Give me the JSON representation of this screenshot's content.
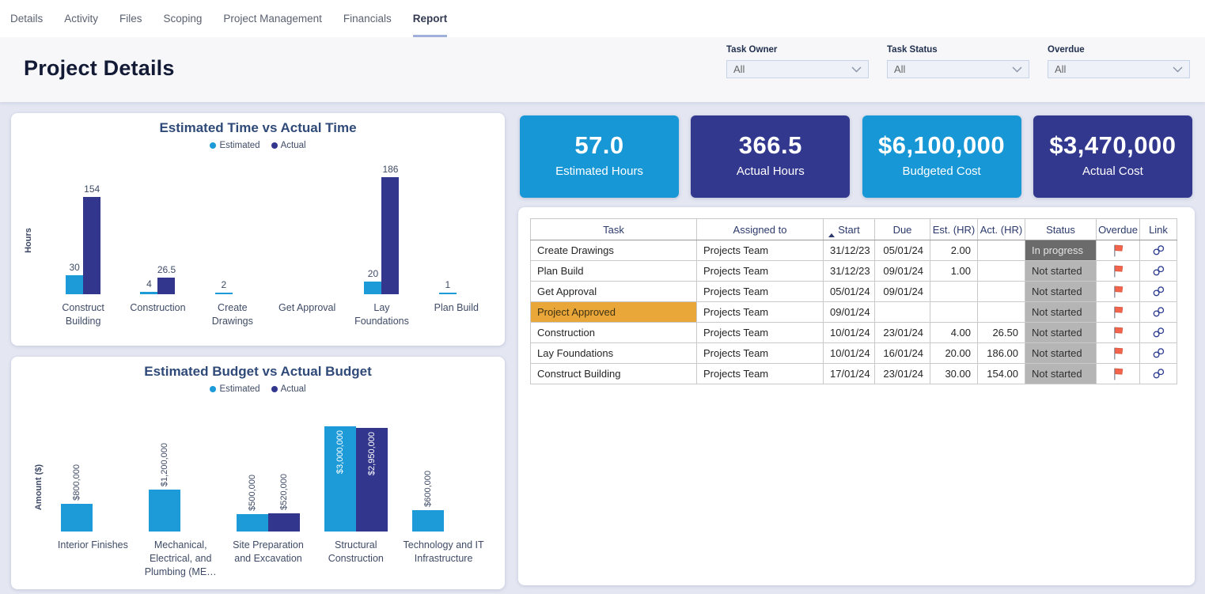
{
  "nav": {
    "tabs": [
      {
        "label": "Details",
        "active": false
      },
      {
        "label": "Activity",
        "active": false
      },
      {
        "label": "Files",
        "active": false
      },
      {
        "label": "Scoping",
        "active": false
      },
      {
        "label": "Project Management",
        "active": false
      },
      {
        "label": "Financials",
        "active": false
      },
      {
        "label": "Report",
        "active": true
      }
    ]
  },
  "header": {
    "title": "Project Details",
    "filters": [
      {
        "label": "Task Owner",
        "value": "All"
      },
      {
        "label": "Task Status",
        "value": "All"
      },
      {
        "label": "Overdue",
        "value": "All"
      }
    ]
  },
  "kpis": [
    {
      "value": "57.0",
      "label": "Estimated Hours",
      "color": "#1797D6"
    },
    {
      "value": "366.5",
      "label": "Actual Hours",
      "color": "#33388F"
    },
    {
      "value": "$6,100,000",
      "label": "Budgeted Cost",
      "color": "#1797D6"
    },
    {
      "value": "$3,470,000",
      "label": "Actual Cost",
      "color": "#33388F"
    }
  ],
  "chart_data": [
    {
      "type": "bar",
      "title": "Estimated Time vs Actual Time",
      "ylabel": "Hours",
      "legend_position": "top",
      "grid": false,
      "categories": [
        "Construct Building",
        "Construction",
        "Create Drawings",
        "Get Approval",
        "Lay Foundations",
        "Plan Build"
      ],
      "series": [
        {
          "name": "Estimated",
          "color": "#1D9BD8",
          "values": [
            30,
            4,
            2,
            null,
            20,
            1
          ],
          "labels": [
            "30",
            "4",
            "2",
            null,
            "20",
            "1"
          ]
        },
        {
          "name": "Actual",
          "color": "#32378D",
          "values": [
            154,
            26.5,
            null,
            null,
            186,
            null
          ],
          "labels": [
            "154",
            "26.5",
            null,
            null,
            "186",
            null
          ]
        }
      ],
      "ylim": [
        0,
        186
      ]
    },
    {
      "type": "bar",
      "title": "Estimated Budget vs Actual Budget",
      "ylabel": "Amount ($)",
      "legend_position": "top",
      "grid": false,
      "categories": [
        "Interior Finishes",
        "Mechanical, Electrical, and Plumbing (ME…",
        "Site Preparation and Excavation",
        "Structural Construction",
        "Technology and IT Infrastructure"
      ],
      "series": [
        {
          "name": "Estimated",
          "color": "#1D9BD8",
          "values": [
            800000,
            1200000,
            500000,
            3000000,
            600000
          ],
          "labels": [
            "$800,000",
            "$1,200,000",
            "$500,000",
            "$3,000,000",
            "$600,000"
          ]
        },
        {
          "name": "Actual",
          "color": "#32378D",
          "values": [
            null,
            null,
            520000,
            2950000,
            null
          ],
          "labels": [
            null,
            null,
            "$520,000",
            "$2,950,000",
            null
          ]
        }
      ],
      "ylim": [
        0,
        3000000
      ]
    }
  ],
  "table": {
    "columns": [
      {
        "label": "Task"
      },
      {
        "label": "Assigned to"
      },
      {
        "label": "Start",
        "sort": "asc"
      },
      {
        "label": "Due"
      },
      {
        "label": "Est. (HR)"
      },
      {
        "label": "Act. (HR)"
      },
      {
        "label": "Status"
      },
      {
        "label": "Overdue"
      },
      {
        "label": "Link"
      }
    ],
    "rows": [
      {
        "task": "Create Drawings",
        "assigned": "Projects Team",
        "start": "31/12/23",
        "due": "05/01/24",
        "est": "2.00",
        "act": "",
        "status": "In progress",
        "overdue": "flag",
        "link": "link",
        "highlight": false
      },
      {
        "task": "Plan Build",
        "assigned": "Projects Team",
        "start": "31/12/23",
        "due": "09/01/24",
        "est": "1.00",
        "act": "",
        "status": "Not started",
        "overdue": "flag",
        "link": "link",
        "highlight": false
      },
      {
        "task": "Get Approval",
        "assigned": "Projects Team",
        "start": "05/01/24",
        "due": "09/01/24",
        "est": "",
        "act": "",
        "status": "Not started",
        "overdue": "flag",
        "link": "link",
        "highlight": false
      },
      {
        "task": "Project Approved",
        "assigned": "Projects Team",
        "start": "09/01/24",
        "due": "",
        "est": "",
        "act": "",
        "status": "Not started",
        "overdue": "flag",
        "link": "link",
        "highlight": true
      },
      {
        "task": "Construction",
        "assigned": "Projects Team",
        "start": "10/01/24",
        "due": "23/01/24",
        "est": "4.00",
        "act": "26.50",
        "status": "Not started",
        "overdue": "flag",
        "link": "link",
        "highlight": false
      },
      {
        "task": "Lay Foundations",
        "assigned": "Projects Team",
        "start": "10/01/24",
        "due": "16/01/24",
        "est": "20.00",
        "act": "186.00",
        "status": "Not started",
        "overdue": "flag",
        "link": "link",
        "highlight": false
      },
      {
        "task": "Construct Building",
        "assigned": "Projects Team",
        "start": "17/01/24",
        "due": "23/01/24",
        "est": "30.00",
        "act": "154.00",
        "status": "Not started",
        "overdue": "flag",
        "link": "link",
        "highlight": false
      }
    ]
  },
  "colors": {
    "estimated_blue": "#1D9BD8",
    "actual_navy": "#32378D",
    "kpi_blue": "#1797D6",
    "kpi_navy": "#33388F",
    "highlight_orange": "#EAA739",
    "status_in_progress": "#6B6B6B",
    "status_not_started": "#B5B5B5",
    "flag_red": "#F2654C",
    "link_blue": "#2B3A8F",
    "active_tab_underline": "#9FB1DB",
    "page_background": "#E4E7F2"
  }
}
